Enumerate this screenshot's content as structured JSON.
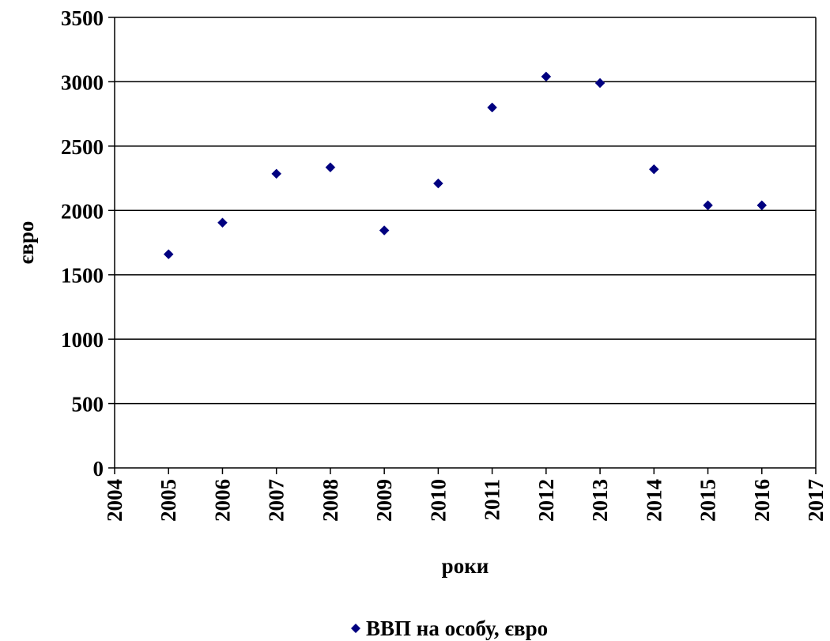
{
  "chart_data": {
    "type": "scatter",
    "title": "",
    "xlabel": "роки",
    "ylabel": "євро",
    "xlim": [
      2004,
      2017
    ],
    "ylim": [
      0,
      3500
    ],
    "x_ticks": [
      2004,
      2005,
      2006,
      2007,
      2008,
      2009,
      2010,
      2011,
      2012,
      2013,
      2014,
      2015,
      2016,
      2017
    ],
    "y_ticks": [
      0,
      500,
      1000,
      1500,
      2000,
      2500,
      3000,
      3500
    ],
    "grid": "horizontal",
    "legend_position": "bottom",
    "series": [
      {
        "name": "ВВП на особу, євро",
        "color": "#000080",
        "marker": "diamond",
        "x": [
          2005,
          2006,
          2007,
          2008,
          2009,
          2010,
          2011,
          2012,
          2013,
          2014,
          2015,
          2016
        ],
        "y": [
          1660,
          1905,
          2285,
          2335,
          1845,
          2210,
          2800,
          3040,
          2990,
          2320,
          2040,
          2040
        ]
      }
    ]
  }
}
